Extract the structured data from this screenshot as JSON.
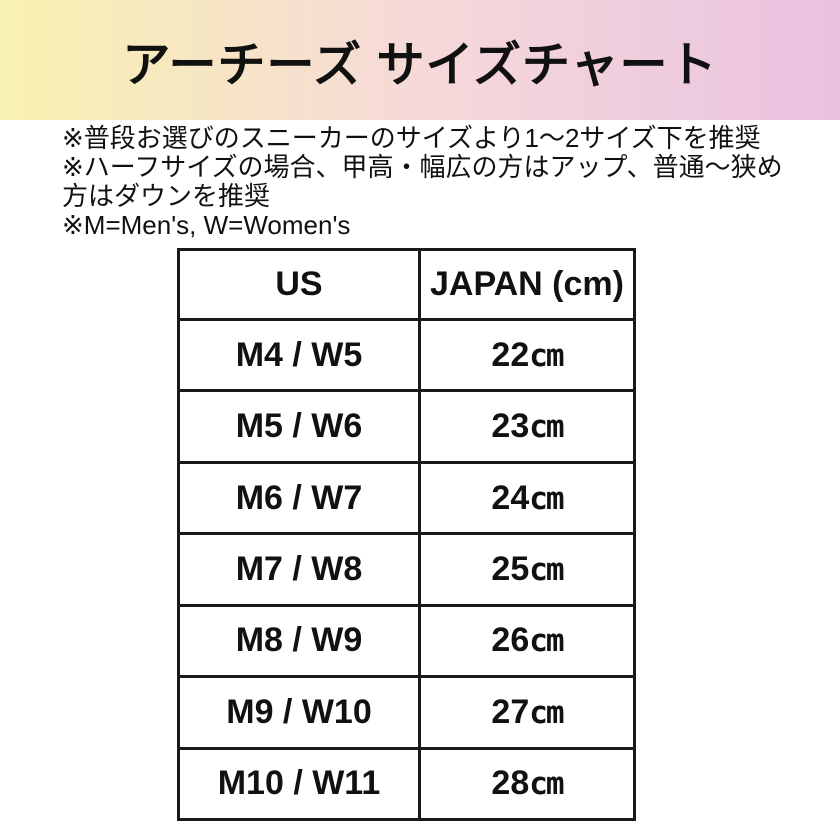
{
  "header": {
    "title": "アーチーズ サイズチャート"
  },
  "notes": {
    "lines": [
      "※普段お選びのスニーカーのサイズより1〜2サイズ下を推奨",
      "※ハーフサイズの場合、甲高・幅広の方はアップ、普通〜狭め",
      "方はダウンを推奨",
      "※M=Men's, W=Women's"
    ]
  },
  "table": {
    "headers": [
      "US",
      "JAPAN (cm)"
    ],
    "rows": [
      {
        "us": "M4 / W5",
        "jp_value": "22",
        "jp_unit": "cm"
      },
      {
        "us": "M5 / W6",
        "jp_value": "23",
        "jp_unit": "cm"
      },
      {
        "us": "M6 / W7",
        "jp_value": "24",
        "jp_unit": "cm"
      },
      {
        "us": "M7 / W8",
        "jp_value": "25",
        "jp_unit": "cm"
      },
      {
        "us": "M8 / W9",
        "jp_value": "26",
        "jp_unit": "cm"
      },
      {
        "us": "M9 / W10",
        "jp_value": "27",
        "jp_unit": "cm"
      },
      {
        "us": "M10 / W11",
        "jp_value": "28",
        "jp_unit": "cm"
      }
    ]
  },
  "colors": {
    "banner_gradient_left": "#f8f2b0",
    "banner_gradient_mid": "#f6d8da",
    "banner_gradient_right": "#e9c2e0",
    "text": "#111111",
    "table_border": "#1a1a1a",
    "background": "#ffffff"
  }
}
